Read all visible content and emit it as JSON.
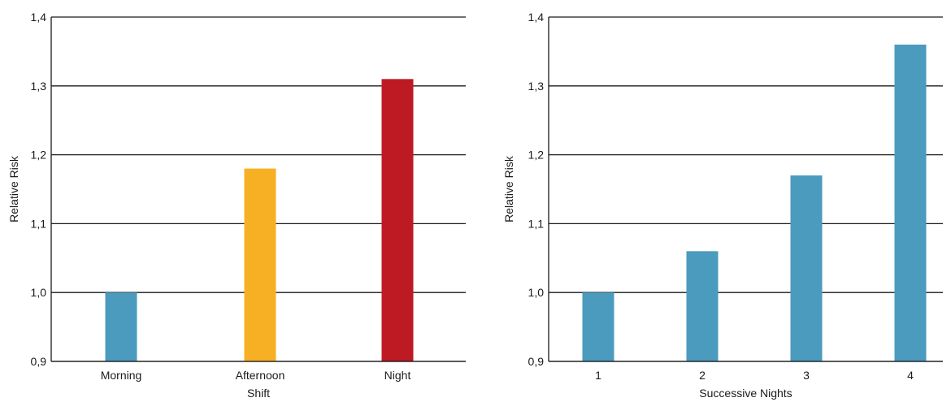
{
  "chart_data": [
    {
      "type": "bar",
      "categories": [
        "Morning",
        "Afternoon",
        "Night"
      ],
      "values": [
        1.0,
        1.18,
        1.31
      ],
      "colors": [
        "#4a9bbd",
        "#f7b023",
        "#be1a24"
      ],
      "title": "",
      "xlabel": "Shift",
      "ylabel": "Relative Risk",
      "ylim": [
        0.9,
        1.4
      ],
      "yticks": [
        0.9,
        1.0,
        1.1,
        1.2,
        1.3,
        1.4
      ],
      "ytick_labels": [
        "0,9",
        "1,0",
        "1,1",
        "1,2",
        "1,3",
        "1,4"
      ],
      "grid": true,
      "legend": false
    },
    {
      "type": "bar",
      "categories": [
        "1",
        "2",
        "3",
        "4"
      ],
      "values": [
        1.0,
        1.06,
        1.17,
        1.36
      ],
      "colors": [
        "#4a9bbd",
        "#4a9bbd",
        "#4a9bbd",
        "#4a9bbd"
      ],
      "title": "",
      "xlabel": "Successive Nights",
      "ylabel": "Relative Risk",
      "ylim": [
        0.9,
        1.4
      ],
      "yticks": [
        0.9,
        1.0,
        1.1,
        1.2,
        1.3,
        1.4
      ],
      "ytick_labels": [
        "0,9",
        "1,0",
        "1,1",
        "1,2",
        "1,3",
        "1,4"
      ],
      "grid": true,
      "legend": false
    }
  ]
}
